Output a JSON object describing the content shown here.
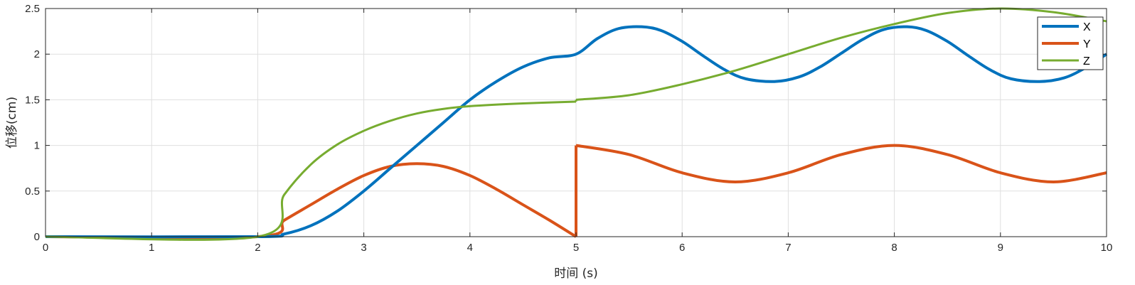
{
  "chart_data": {
    "type": "line",
    "xlabel": "时间 (s)",
    "ylabel": "位移(cm)",
    "xlim": [
      0,
      10
    ],
    "ylim": [
      0,
      2.5
    ],
    "xticks": [
      0,
      1,
      2,
      3,
      4,
      5,
      6,
      7,
      8,
      9,
      10
    ],
    "yticks": [
      0,
      0.5,
      1,
      1.5,
      2,
      2.5
    ],
    "xtick_labels": [
      "0",
      "1",
      "2",
      "3",
      "4",
      "5",
      "6",
      "7",
      "8",
      "9",
      "10"
    ],
    "ytick_labels": [
      "0",
      "0.5",
      "1",
      "1.5",
      "2",
      "2.5"
    ],
    "grid": true,
    "legend_position": "top-right",
    "colors": {
      "X": "#0072BD",
      "Y": "#D95319",
      "Z": "#77AC30"
    },
    "series": [
      {
        "name": "X",
        "x": [
          0,
          2,
          2.25,
          2.5,
          2.75,
          3,
          3.25,
          3.5,
          3.75,
          4,
          4.25,
          4.5,
          4.75,
          5,
          5.2,
          5.4,
          5.62,
          5.8,
          6,
          6.2,
          6.4,
          6.6,
          6.87,
          7.1,
          7.3,
          7.5,
          7.7,
          7.9,
          8.12,
          8.3,
          8.5,
          8.7,
          8.9,
          9.1,
          9.37,
          9.6,
          9.8,
          10
        ],
        "y": [
          0,
          0,
          0.03,
          0.12,
          0.28,
          0.5,
          0.75,
          1.0,
          1.25,
          1.5,
          1.7,
          1.86,
          1.96,
          2.0,
          2.17,
          2.28,
          2.3,
          2.26,
          2.14,
          1.98,
          1.83,
          1.73,
          1.7,
          1.75,
          1.86,
          2.01,
          2.16,
          2.27,
          2.3,
          2.26,
          2.14,
          1.98,
          1.83,
          1.73,
          1.7,
          1.74,
          1.85,
          2.0
        ]
      },
      {
        "name": "Y",
        "x": [
          0,
          2,
          2.25,
          2.5,
          2.75,
          3,
          3.25,
          3.5,
          3.75,
          4,
          4.25,
          4.5,
          4.75,
          5,
          5,
          5.5,
          6,
          6.5,
          7,
          7.5,
          8,
          8.5,
          9,
          9.5,
          10
        ],
        "y": [
          0,
          0,
          0.18,
          0.35,
          0.52,
          0.67,
          0.77,
          0.8,
          0.77,
          0.67,
          0.52,
          0.35,
          0.18,
          0,
          1.0,
          0.9,
          0.7,
          0.6,
          0.7,
          0.9,
          1.0,
          0.9,
          0.7,
          0.6,
          0.7
        ]
      },
      {
        "name": "Z",
        "x": [
          0,
          2,
          2.25,
          2.5,
          2.75,
          3,
          3.25,
          3.5,
          3.75,
          4,
          4.5,
          5,
          5,
          5.5,
          6,
          6.5,
          7,
          7.5,
          8,
          8.5,
          9,
          9.5,
          10
        ],
        "y": [
          0,
          0,
          0.46,
          0.79,
          1.01,
          1.16,
          1.27,
          1.35,
          1.4,
          1.43,
          1.46,
          1.48,
          1.5,
          1.55,
          1.67,
          1.82,
          2.0,
          2.18,
          2.33,
          2.45,
          2.5,
          2.46,
          2.36
        ]
      }
    ]
  }
}
